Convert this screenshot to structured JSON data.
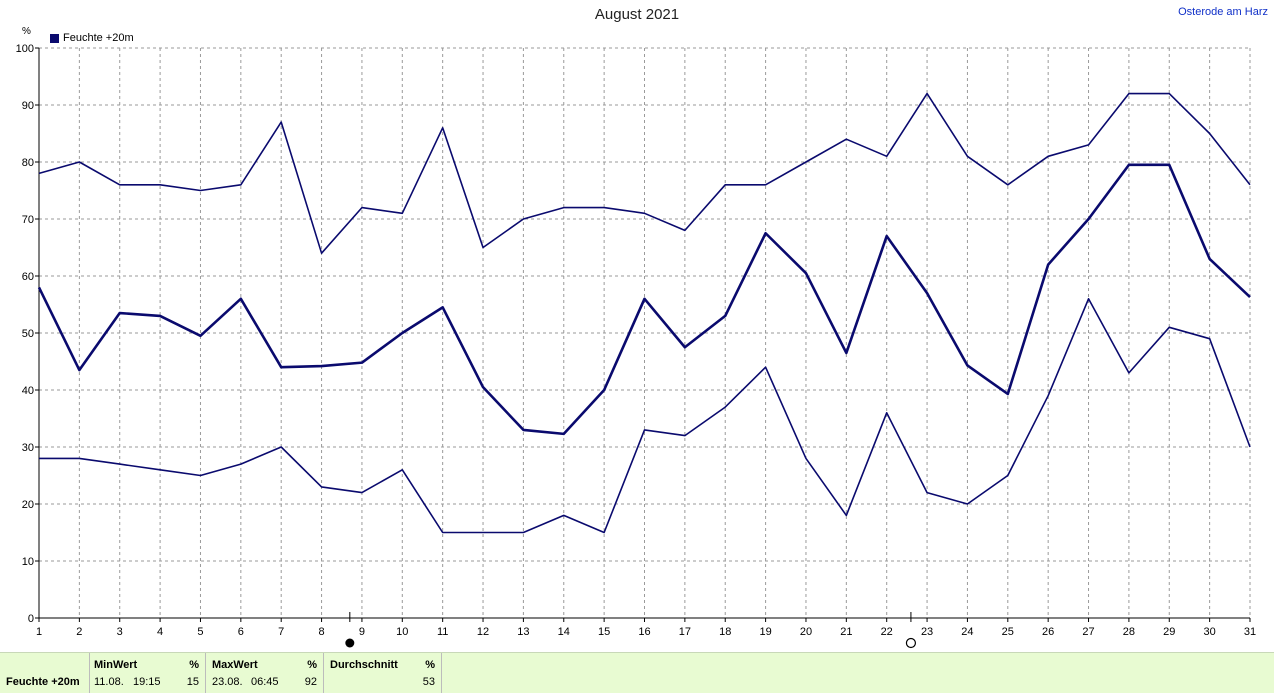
{
  "title": "August 2021",
  "location": "Osterode am Harz",
  "unit": "%",
  "legend": {
    "label": "Feuchte +20m",
    "color": "#0a0a6e"
  },
  "chart_data": {
    "type": "line",
    "title": "August 2021",
    "ylabel": "%",
    "xlabel": "",
    "ylim": [
      0,
      100
    ],
    "yticks": [
      0,
      10,
      20,
      30,
      40,
      50,
      60,
      70,
      80,
      90,
      100
    ],
    "x": [
      1,
      2,
      3,
      4,
      5,
      6,
      7,
      8,
      9,
      10,
      11,
      12,
      13,
      14,
      15,
      16,
      17,
      18,
      19,
      20,
      21,
      22,
      23,
      24,
      25,
      26,
      27,
      28,
      29,
      30,
      31
    ],
    "grid": true,
    "legend_position": "top-left",
    "series": [
      {
        "role": "max",
        "values": [
          78,
          80,
          76,
          76,
          75,
          76,
          87,
          64,
          72,
          71,
          86,
          65,
          70,
          72,
          72,
          71,
          68,
          76,
          76,
          80,
          84,
          81,
          92,
          81,
          76,
          81,
          83,
          92,
          92,
          85,
          76
        ]
      },
      {
        "role": "mean",
        "values": [
          58,
          43.5,
          53.5,
          53,
          49.5,
          56,
          44,
          44.2,
          44.8,
          50,
          54.5,
          40.5,
          33,
          32.3,
          40,
          56,
          47.5,
          53,
          67.5,
          60.5,
          46.5,
          67,
          57,
          44.3,
          39.3,
          62,
          70,
          79.5,
          79.5,
          63,
          56.3
        ]
      },
      {
        "role": "min",
        "values": [
          28,
          28,
          27,
          26,
          25,
          27,
          30,
          23,
          22,
          26,
          15,
          15,
          15,
          18,
          15,
          33,
          32,
          37,
          44,
          28,
          18,
          36,
          22,
          20,
          25,
          39,
          56,
          43,
          51,
          49,
          30
        ]
      }
    ],
    "markers": [
      {
        "name": "full-moon",
        "x": 8.7
      },
      {
        "name": "new-moon",
        "x": 22.6
      }
    ]
  },
  "footer": {
    "series_label": "Feuchte +20m",
    "min": {
      "header": "MinWert",
      "unit": "%",
      "date": "11.08.",
      "time": "19:15",
      "value": "15"
    },
    "max": {
      "header": "MaxWert",
      "unit": "%",
      "date": "23.08.",
      "time": "06:45",
      "value": "92"
    },
    "avg": {
      "header": "Durchschnitt",
      "unit": "%",
      "value": "53"
    }
  }
}
